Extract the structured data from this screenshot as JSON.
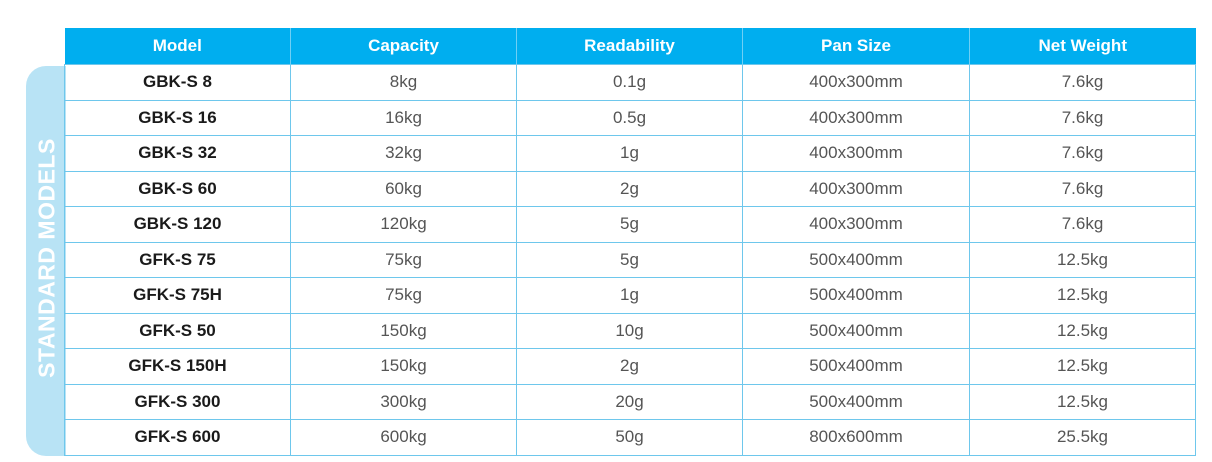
{
  "side_label": "STANDARD  MODELS",
  "table": {
    "headers": [
      "Model",
      "Capacity",
      "Readability",
      "Pan Size",
      "Net Weight"
    ],
    "rows": [
      [
        "GBK-S 8",
        "8kg",
        "0.1g",
        "400x300mm",
        "7.6kg"
      ],
      [
        "GBK-S 16",
        "16kg",
        "0.5g",
        "400x300mm",
        "7.6kg"
      ],
      [
        "GBK-S 32",
        "32kg",
        "1g",
        "400x300mm",
        "7.6kg"
      ],
      [
        "GBK-S 60",
        "60kg",
        "2g",
        "400x300mm",
        "7.6kg"
      ],
      [
        "GBK-S 120",
        "120kg",
        "5g",
        "400x300mm",
        "7.6kg"
      ],
      [
        "GFK-S 75",
        "75kg",
        "5g",
        "500x400mm",
        "12.5kg"
      ],
      [
        "GFK-S 75H",
        "75kg",
        "1g",
        "500x400mm",
        "12.5kg"
      ],
      [
        "GFK-S 50",
        "150kg",
        "10g",
        "500x400mm",
        "12.5kg"
      ],
      [
        "GFK-S 150H",
        "150kg",
        "2g",
        "500x400mm",
        "12.5kg"
      ],
      [
        "GFK-S 300",
        "300kg",
        "20g",
        "500x400mm",
        "12.5kg"
      ],
      [
        "GFK-S 600",
        "600kg",
        "50g",
        "800x600mm",
        "25.5kg"
      ]
    ]
  },
  "colors": {
    "header_bg": "#00aeef",
    "side_tab_bg": "#b8e3f5",
    "border": "#6ec7ec"
  }
}
